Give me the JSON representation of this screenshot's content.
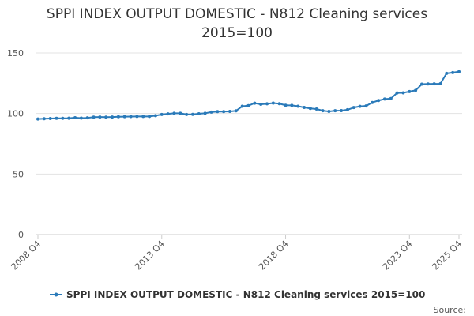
{
  "chart_data": {
    "type": "line",
    "title_line1": "SPPI INDEX OUTPUT DOMESTIC - N812 Cleaning services",
    "title_line2": "2015=100",
    "xlabel": "",
    "ylabel": "",
    "ylim": [
      0,
      150
    ],
    "yticks": [
      0,
      50,
      100,
      150
    ],
    "grid": true,
    "legend_position": "bottom",
    "source_label": "Source:",
    "x_tick_labels": [
      {
        "index": 0,
        "label": "2008 Q4"
      },
      {
        "index": 20,
        "label": "2013 Q4"
      },
      {
        "index": 40,
        "label": "2018 Q4"
      },
      {
        "index": 60,
        "label": "2023 Q4"
      },
      {
        "index": 68,
        "label": "2025 Q4"
      }
    ],
    "series": [
      {
        "name": "SPPI INDEX OUTPUT DOMESTIC - N812 Cleaning services 2015=100",
        "color": "#2a7ab9",
        "values": [
          95.5,
          95.7,
          95.9,
          96.0,
          96.0,
          96.1,
          96.5,
          96.2,
          96.4,
          97.0,
          97.1,
          97.0,
          97.1,
          97.3,
          97.4,
          97.5,
          97.6,
          97.6,
          97.6,
          98.2,
          99.2,
          99.7,
          100.2,
          100.2,
          99.2,
          99.3,
          99.8,
          100.2,
          101.2,
          101.6,
          101.6,
          101.7,
          102.2,
          106.0,
          106.5,
          108.5,
          107.6,
          108.0,
          108.6,
          108.1,
          106.8,
          106.7,
          106.0,
          105.0,
          104.2,
          103.7,
          102.3,
          101.7,
          102.3,
          102.4,
          103.1,
          104.9,
          105.9,
          106.2,
          109.1,
          110.7,
          111.9,
          112.3,
          117.0,
          117.1,
          118.1,
          119.1,
          124.2,
          124.4,
          124.5,
          124.6,
          133.1,
          133.8,
          134.5
        ]
      }
    ]
  }
}
